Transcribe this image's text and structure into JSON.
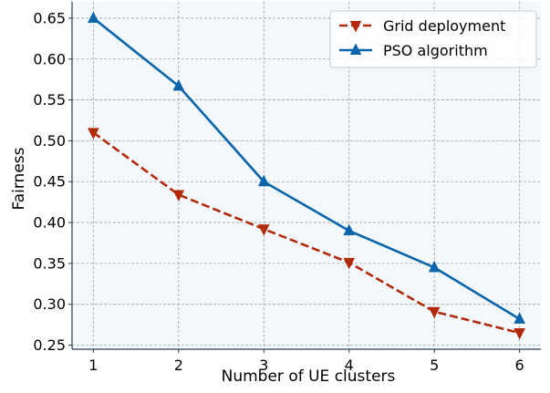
{
  "chart_data": {
    "type": "line",
    "xlabel": "Number of UE clusters",
    "ylabel": "Fairness",
    "x": [
      1,
      2,
      3,
      4,
      5,
      6
    ],
    "xlim": [
      0.75,
      6.25
    ],
    "ylim": [
      0.245,
      0.67
    ],
    "xticks": [
      1,
      2,
      3,
      4,
      5,
      6
    ],
    "yticks": [
      0.25,
      0.3,
      0.35,
      0.4,
      0.45,
      0.5,
      0.55,
      0.6,
      0.65
    ],
    "grid": true,
    "legend_position": "top-right",
    "series": [
      {
        "name": "Grid deployment",
        "values": [
          0.51,
          0.434,
          0.392,
          0.351,
          0.291,
          0.265
        ],
        "color": "#b22a0a",
        "line_style": "dashed",
        "marker": "triangle-down"
      },
      {
        "name": "PSO algorithm",
        "values": [
          0.65,
          0.567,
          0.45,
          0.39,
          0.345,
          0.282
        ],
        "color": "#0a64aa",
        "line_style": "solid",
        "marker": "triangle-up"
      }
    ]
  },
  "colors": {
    "plot_background": "#f2f8fc",
    "grid": "#a0a4a8",
    "axis": "#2f3f4f"
  }
}
